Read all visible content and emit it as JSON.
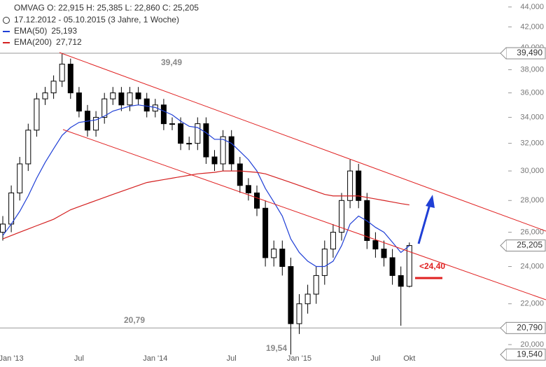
{
  "chart_data": {
    "type": "candlestick",
    "header": {
      "quote": "OMVAG   O: 22,915   H: 25,385   L: 22,860   C: 25,205",
      "period": "17.12.2012 - 05.10.2015 (3 Jahre, 1 Woche)"
    },
    "log_scale": true,
    "grid": false,
    "up_color": "#ffffff",
    "down_color": "#000000",
    "categories": [
      null,
      "Jan '13",
      null,
      null,
      null,
      null,
      null,
      null,
      null,
      "Jul",
      null,
      null,
      null,
      null,
      null,
      null,
      null,
      null,
      "Jan '14",
      null,
      null,
      null,
      null,
      null,
      null,
      null,
      null,
      "Jul",
      null,
      null,
      null,
      null,
      null,
      null,
      null,
      "Jan '15",
      null,
      null,
      null,
      null,
      null,
      null,
      null,
      null,
      "Jul",
      null,
      null,
      null,
      "Okt"
    ],
    "open": [
      26,
      26.5,
      28.5,
      30.5,
      33,
      35.5,
      36,
      37,
      38.5,
      36,
      34.5,
      33,
      34,
      35.5,
      36,
      35,
      36,
      35.5,
      34.5,
      35,
      33.5,
      33.5,
      32,
      32,
      33.5,
      31,
      30.5,
      32.5,
      30.5,
      29,
      28.5,
      27.5,
      24.5,
      25,
      24,
      21,
      22,
      22.5,
      23.5,
      25,
      26,
      28,
      30,
      28,
      25.5,
      25,
      24.5,
      23.5,
      22.915
    ],
    "high": [
      27,
      29,
      31,
      33.5,
      36,
      36.5,
      37.5,
      39.49,
      39,
      36.5,
      35,
      34.5,
      36,
      36.5,
      36.5,
      36.5,
      36.5,
      36,
      35.5,
      35.5,
      34,
      34,
      32.5,
      34,
      34,
      31.5,
      33,
      33,
      31,
      29.5,
      29,
      28,
      25.5,
      25.5,
      24.5,
      22.5,
      23,
      24,
      25.5,
      26.5,
      28.5,
      30.8,
      30.5,
      28.5,
      26,
      25.5,
      25,
      24,
      25.385
    ],
    "low": [
      25.5,
      26,
      28,
      30,
      32.5,
      35,
      35.5,
      36.5,
      35.5,
      34,
      32.5,
      32.5,
      33.5,
      35,
      34.5,
      34.5,
      35,
      34,
      34,
      33,
      33,
      31.5,
      31.5,
      31.5,
      30.5,
      30,
      30,
      30,
      28.5,
      28,
      27,
      24,
      24,
      23.5,
      19.54,
      20.5,
      21.5,
      22,
      23,
      24.5,
      25.5,
      27.5,
      27.5,
      25,
      24.5,
      24,
      23,
      20.9,
      22.86
    ],
    "close": [
      26.5,
      28.5,
      30.5,
      33,
      35.5,
      36,
      37,
      38.5,
      36,
      34.5,
      33,
      34,
      35.5,
      36,
      35,
      36,
      35.5,
      34.5,
      35,
      33.5,
      33.5,
      32,
      32,
      33.5,
      31,
      30.5,
      32.5,
      30.5,
      29,
      28.5,
      27.5,
      24.5,
      25,
      24,
      21,
      22,
      22.5,
      23.5,
      25,
      26,
      28,
      30,
      28,
      25.5,
      25,
      24.5,
      23.5,
      22.915,
      25.205
    ],
    "series": [
      {
        "name": "EMA(50)",
        "legend_value": "25,193",
        "color": "#1f3fd6",
        "values": [
          25.8,
          26.5,
          27.3,
          28.3,
          29.5,
          30.6,
          31.6,
          32.6,
          33.2,
          33.6,
          33.7,
          33.8,
          34.1,
          34.5,
          34.7,
          34.9,
          35.0,
          34.9,
          34.8,
          34.5,
          34.2,
          33.7,
          33.3,
          33.2,
          32.8,
          32.3,
          32.3,
          32.0,
          31.4,
          30.8,
          30.0,
          28.8,
          27.9,
          27.0,
          25.6,
          24.8,
          24.3,
          24.0,
          24.0,
          24.3,
          25.2,
          26.5,
          27.0,
          26.7,
          26.3,
          26.0,
          25.4,
          24.8,
          25.193
        ]
      },
      {
        "name": "EMA(200)",
        "legend_value": "27,712",
        "color": "#d42020",
        "values": [
          25.6,
          25.8,
          26.0,
          26.2,
          26.4,
          26.6,
          26.8,
          27.1,
          27.4,
          27.6,
          27.8,
          28.0,
          28.2,
          28.4,
          28.6,
          28.8,
          29.0,
          29.2,
          29.3,
          29.4,
          29.5,
          29.6,
          29.7,
          29.8,
          29.85,
          29.9,
          30.0,
          30.0,
          30.0,
          29.95,
          29.9,
          29.8,
          29.6,
          29.4,
          29.2,
          29.0,
          28.8,
          28.6,
          28.4,
          28.3,
          28.3,
          28.3,
          28.3,
          28.2,
          28.1,
          28.0,
          27.9,
          27.8,
          27.712
        ]
      }
    ],
    "ylim": [
      18.98,
      44.72
    ],
    "yticks": [
      {
        "value": 20,
        "label": "20,000"
      },
      {
        "value": 22,
        "label": "22,000"
      },
      {
        "value": 24,
        "label": "24,000"
      },
      {
        "value": 26,
        "label": "26,000"
      },
      {
        "value": 28,
        "label": "28,000"
      },
      {
        "value": 30,
        "label": "30,000"
      },
      {
        "value": 32,
        "label": "32,000"
      },
      {
        "value": 34,
        "label": "34,000"
      },
      {
        "value": 36,
        "label": "36,000"
      },
      {
        "value": 38,
        "label": "38,000"
      },
      {
        "value": 40,
        "label": "40,000"
      },
      {
        "value": 42,
        "label": "42,000"
      },
      {
        "value": 44,
        "label": "44,000"
      }
    ],
    "levels": [
      {
        "value": 39.49,
        "label": "39,490",
        "line": true
      },
      {
        "value": 25.205,
        "label": "25,205",
        "line": false
      },
      {
        "value": 20.79,
        "label": "20,790",
        "line": true
      },
      {
        "value": 19.54,
        "label": "19,540",
        "line": false
      }
    ],
    "annotations": [
      "39,49",
      "20,79",
      "19,54",
      "<24,40"
    ]
  }
}
